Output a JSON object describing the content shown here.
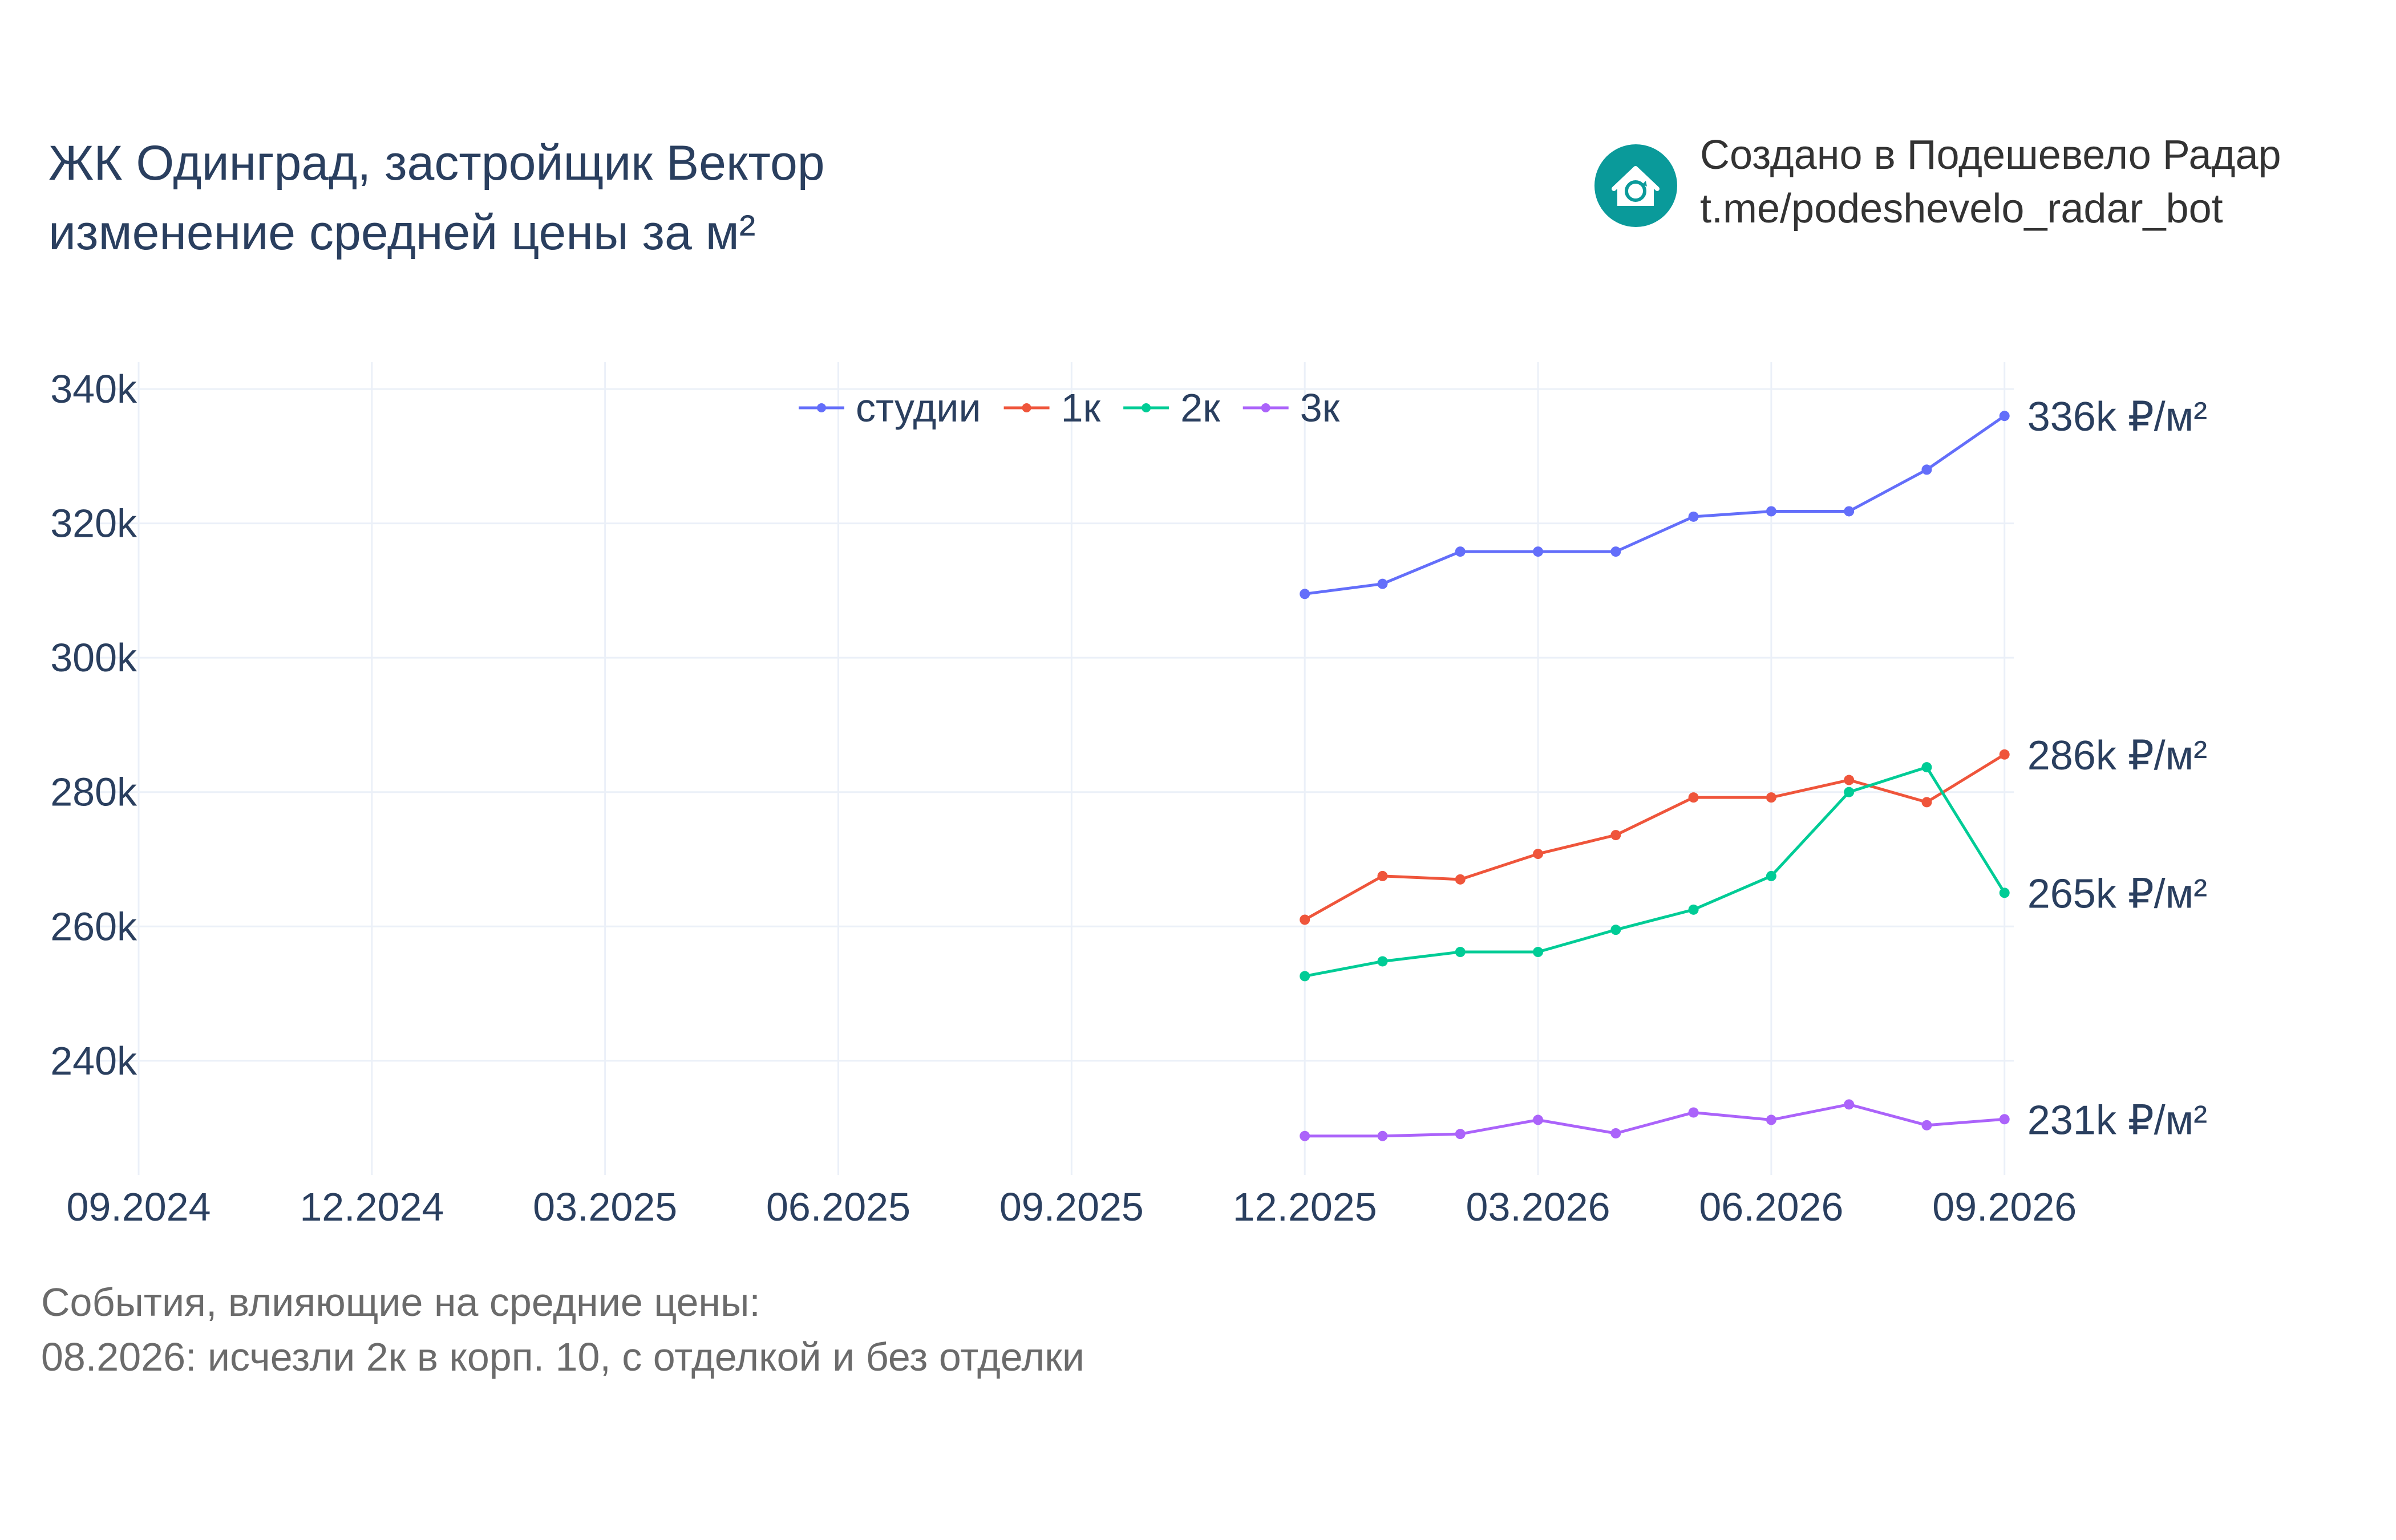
{
  "header": {
    "title_line1": "ЖК Одинград, застройщик Вектор",
    "title_line2": "изменение средней цены за м²"
  },
  "brand": {
    "line1": "Создано в Подешевело Радар",
    "line2": "t.me/podeshevelo_radar_bot",
    "logo_icon": "house-refresh-icon",
    "logo_color": "#0a9a9a"
  },
  "events": {
    "heading": "События, влияющие на средние цены:",
    "items": [
      "08.2026: исчезли 2к в корп. 10, с отделкой и без отделки"
    ]
  },
  "chart_data": {
    "type": "line",
    "x": [
      "12.2025",
      "01.2026",
      "02.2026",
      "03.2026",
      "04.2026",
      "05.2026",
      "06.2026",
      "07.2026",
      "08.2026",
      "09.2026"
    ],
    "xlim": [
      "09.2024",
      "10.2026"
    ],
    "xticks": [
      "09.2024",
      "12.2024",
      "03.2025",
      "06.2025",
      "09.2025",
      "12.2025",
      "03.2026",
      "06.2026",
      "09.2026"
    ],
    "ylim": [
      223000,
      344000
    ],
    "yticks": [
      240000,
      260000,
      280000,
      300000,
      320000,
      340000
    ],
    "ytick_labels": [
      "240k",
      "260k",
      "280k",
      "300k",
      "320k",
      "340k"
    ],
    "grid": true,
    "legend_position": "top-center",
    "series": [
      {
        "name": "студии",
        "color": "#636efa",
        "values": [
          309500,
          311000,
          315800,
          315800,
          315800,
          321000,
          321800,
          321800,
          328000,
          336000
        ],
        "end_label": "336k ₽/м²"
      },
      {
        "name": "1к",
        "color": "#ef553b",
        "values": [
          261000,
          267500,
          267000,
          270800,
          273600,
          279200,
          279200,
          281800,
          278500,
          285600
        ],
        "end_label": "286k ₽/м²"
      },
      {
        "name": "2к",
        "color": "#00cc96",
        "values": [
          252600,
          254800,
          256200,
          256200,
          259500,
          262500,
          267500,
          280000,
          283700,
          265000
        ],
        "end_label": "265k ₽/м²"
      },
      {
        "name": "3к",
        "color": "#ab63fa",
        "values": [
          228800,
          228800,
          229100,
          231200,
          229200,
          232300,
          231200,
          233500,
          230400,
          231300
        ],
        "end_label": "231k ₽/м²"
      }
    ]
  }
}
